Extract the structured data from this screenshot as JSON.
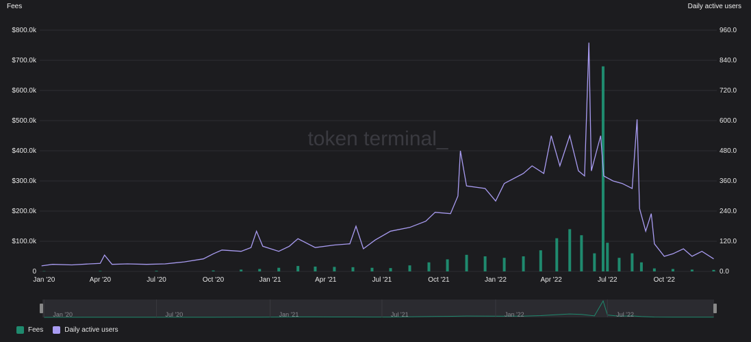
{
  "chart_data": {
    "type": "bar+line",
    "watermark": "token terminal_",
    "left_axis": {
      "title": "Fees",
      "ticks": [
        0,
        100000,
        200000,
        300000,
        400000,
        500000,
        600000,
        700000,
        800000
      ],
      "tick_labels": [
        "0",
        "$100.0k",
        "$200.0k",
        "$300.0k",
        "$400.0k",
        "$500.0k",
        "$600.0k",
        "$700.0k",
        "$800.0k"
      ],
      "ylim": [
        0,
        800000
      ]
    },
    "right_axis": {
      "title": "Daily active users",
      "ticks": [
        0,
        120,
        240,
        360,
        480,
        600,
        720,
        840,
        960
      ],
      "tick_labels": [
        "0.0",
        "120.0",
        "240.0",
        "360.0",
        "480.0",
        "600.0",
        "720.0",
        "840.0",
        "960.0"
      ],
      "ylim": [
        0,
        960
      ]
    },
    "x_axis": {
      "tick_labels": [
        "Jan '20",
        "Apr '20",
        "Jul '20",
        "Oct '20",
        "Jan '21",
        "Apr '21",
        "Jul '21",
        "Oct '21",
        "Jan '22",
        "Apr '22",
        "Jul '22",
        "Oct '22"
      ],
      "tick_dates": [
        "2020-01-01",
        "2020-04-01",
        "2020-07-01",
        "2020-10-01",
        "2021-01-01",
        "2021-04-01",
        "2021-07-01",
        "2021-10-01",
        "2022-01-01",
        "2022-04-01",
        "2022-07-01",
        "2022-10-01"
      ],
      "xlim": [
        "2019-12-25",
        "2022-12-25"
      ]
    },
    "navigator_labels": [
      "Jan '20",
      "Jul '20",
      "Jan '21",
      "Jul '21",
      "Jan '22",
      "Jul '22"
    ],
    "navigator_dates": [
      "2020-01-01",
      "2020-07-01",
      "2021-01-01",
      "2021-07-01",
      "2022-01-01",
      "2022-07-01"
    ],
    "series": [
      {
        "name": "Fees",
        "kind": "bar",
        "axis": "left",
        "color": "#1f8a6e",
        "points": [
          [
            "2020-01-01",
            1000
          ],
          [
            "2020-04-01",
            1500
          ],
          [
            "2020-07-01",
            2000
          ],
          [
            "2020-10-01",
            3000
          ],
          [
            "2020-11-15",
            6000
          ],
          [
            "2020-12-15",
            8000
          ],
          [
            "2021-01-15",
            12000
          ],
          [
            "2021-02-15",
            18000
          ],
          [
            "2021-03-15",
            16000
          ],
          [
            "2021-04-15",
            15000
          ],
          [
            "2021-05-15",
            14000
          ],
          [
            "2021-06-15",
            12000
          ],
          [
            "2021-07-15",
            11000
          ],
          [
            "2021-08-15",
            20000
          ],
          [
            "2021-09-15",
            30000
          ],
          [
            "2021-10-15",
            40000
          ],
          [
            "2021-11-15",
            55000
          ],
          [
            "2021-12-15",
            50000
          ],
          [
            "2022-01-15",
            45000
          ],
          [
            "2022-02-15",
            50000
          ],
          [
            "2022-03-15",
            70000
          ],
          [
            "2022-04-10",
            110000
          ],
          [
            "2022-05-01",
            140000
          ],
          [
            "2022-05-20",
            120000
          ],
          [
            "2022-06-10",
            60000
          ],
          [
            "2022-06-24",
            680000
          ],
          [
            "2022-07-01",
            95000
          ],
          [
            "2022-07-20",
            45000
          ],
          [
            "2022-08-10",
            60000
          ],
          [
            "2022-08-25",
            30000
          ],
          [
            "2022-09-15",
            10000
          ],
          [
            "2022-10-15",
            8000
          ],
          [
            "2022-11-15",
            6000
          ],
          [
            "2022-12-20",
            5000
          ]
        ]
      },
      {
        "name": "Daily active users",
        "kind": "line",
        "axis": "right",
        "color": "#a99cf2",
        "points": [
          [
            "2019-12-28",
            22
          ],
          [
            "2020-01-15",
            28
          ],
          [
            "2020-02-15",
            26
          ],
          [
            "2020-03-15",
            30
          ],
          [
            "2020-04-01",
            32
          ],
          [
            "2020-04-08",
            65
          ],
          [
            "2020-04-20",
            28
          ],
          [
            "2020-05-15",
            30
          ],
          [
            "2020-06-15",
            28
          ],
          [
            "2020-07-15",
            30
          ],
          [
            "2020-08-15",
            38
          ],
          [
            "2020-09-15",
            50
          ],
          [
            "2020-10-01",
            70
          ],
          [
            "2020-10-15",
            85
          ],
          [
            "2020-11-15",
            80
          ],
          [
            "2020-12-01",
            95
          ],
          [
            "2020-12-10",
            160
          ],
          [
            "2020-12-20",
            100
          ],
          [
            "2021-01-15",
            80
          ],
          [
            "2021-02-01",
            100
          ],
          [
            "2021-02-15",
            130
          ],
          [
            "2021-03-15",
            95
          ],
          [
            "2021-04-15",
            105
          ],
          [
            "2021-05-10",
            110
          ],
          [
            "2021-05-20",
            180
          ],
          [
            "2021-06-01",
            90
          ],
          [
            "2021-06-20",
            125
          ],
          [
            "2021-07-15",
            160
          ],
          [
            "2021-08-15",
            175
          ],
          [
            "2021-09-10",
            200
          ],
          [
            "2021-09-25",
            235
          ],
          [
            "2021-10-20",
            230
          ],
          [
            "2021-11-01",
            300
          ],
          [
            "2021-11-05",
            480
          ],
          [
            "2021-11-15",
            340
          ],
          [
            "2021-12-15",
            330
          ],
          [
            "2022-01-01",
            280
          ],
          [
            "2022-01-15",
            350
          ],
          [
            "2022-02-15",
            390
          ],
          [
            "2022-03-01",
            420
          ],
          [
            "2022-03-20",
            390
          ],
          [
            "2022-04-01",
            540
          ],
          [
            "2022-04-15",
            420
          ],
          [
            "2022-05-01",
            540
          ],
          [
            "2022-05-15",
            400
          ],
          [
            "2022-05-25",
            380
          ],
          [
            "2022-06-01",
            910
          ],
          [
            "2022-06-05",
            400
          ],
          [
            "2022-06-20",
            540
          ],
          [
            "2022-06-25",
            380
          ],
          [
            "2022-07-10",
            360
          ],
          [
            "2022-07-25",
            350
          ],
          [
            "2022-08-10",
            330
          ],
          [
            "2022-08-18",
            605
          ],
          [
            "2022-08-22",
            250
          ],
          [
            "2022-09-01",
            160
          ],
          [
            "2022-09-10",
            230
          ],
          [
            "2022-09-15",
            110
          ],
          [
            "2022-10-01",
            60
          ],
          [
            "2022-10-15",
            70
          ],
          [
            "2022-11-01",
            90
          ],
          [
            "2022-11-15",
            60
          ],
          [
            "2022-12-01",
            80
          ],
          [
            "2022-12-20",
            50
          ]
        ]
      }
    ],
    "legend": [
      {
        "name": "Fees",
        "color": "#1f8a6e"
      },
      {
        "name": "Daily active users",
        "color": "#a99cf2"
      }
    ],
    "legend_position": "bottom-left",
    "grid": "horizontal"
  }
}
